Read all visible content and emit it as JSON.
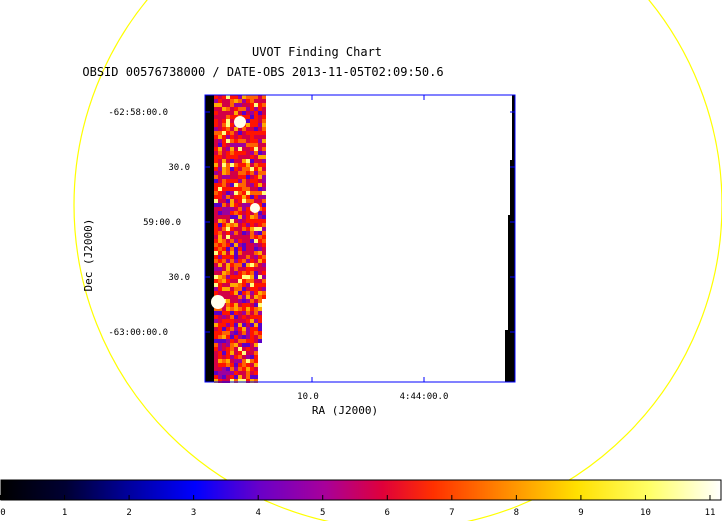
{
  "title": "UVOT Finding Chart",
  "subtitle": "OBSID 00576738000 / DATE-OBS 2013-11-05T02:09:50.6",
  "axes": {
    "xlabel": "RA (J2000)",
    "ylabel": "Dec (J2000)",
    "x_ticks": [
      "10.0",
      "4:44:00.0"
    ],
    "y_ticks": [
      "-62:58:00.0",
      "30.0",
      "59:00.0",
      "30.0",
      "-63:00:00.0"
    ]
  },
  "colorbar": {
    "ticks": [
      "0",
      "1",
      "2",
      "3",
      "4",
      "5",
      "6",
      "7",
      "8",
      "9",
      "10",
      "11"
    ],
    "colormap": [
      "#000000",
      "#00007f",
      "#0000ff",
      "#5a00c8",
      "#9c009c",
      "#d20046",
      "#ff1400",
      "#ff6400",
      "#ffaa00",
      "#ffff00",
      "#ffff80",
      "#ffffff"
    ]
  },
  "colors": {
    "circle": "#ffff00",
    "frame": "#0000ff"
  }
}
